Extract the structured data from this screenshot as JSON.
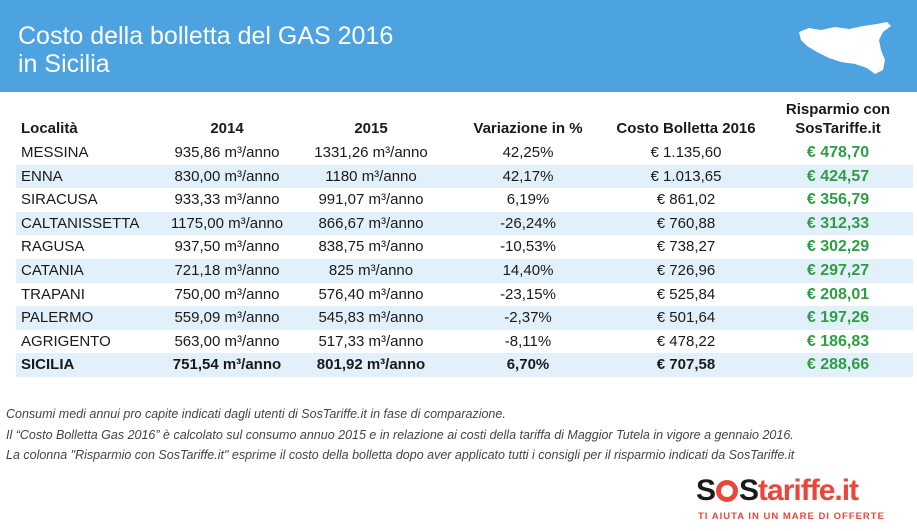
{
  "header": {
    "title": "Costo della bolletta del GAS 2016\nin Sicilia",
    "color": "#4da3e0",
    "icon": "sicily-map-icon"
  },
  "table": {
    "columns": [
      "Località",
      "2014",
      "2015",
      "Variazione in %",
      "Costo Bolletta 2016",
      "Risparmio con\nSosTariffe.it"
    ],
    "rows": [
      {
        "loc": "MESSINA",
        "y2014": "935,86 m³/anno",
        "y2015": "1331,26 m³/anno",
        "var": "42,25%",
        "cost": "€ 1.135,60",
        "sav": "€ 478,70"
      },
      {
        "loc": "ENNA",
        "y2014": "830,00 m³/anno",
        "y2015": "1180 m³/anno",
        "var": "42,17%",
        "cost": "€ 1.013,65",
        "sav": "€ 424,57"
      },
      {
        "loc": "SIRACUSA",
        "y2014": "933,33 m³/anno",
        "y2015": "991,07 m³/anno",
        "var": "6,19%",
        "cost": "€ 861,02",
        "sav": "€ 356,79"
      },
      {
        "loc": "CALTANISSETTA",
        "y2014": "1175,00 m³/anno",
        "y2015": "866,67 m³/anno",
        "var": "-26,24%",
        "cost": "€ 760,88",
        "sav": "€ 312,33"
      },
      {
        "loc": "RAGUSA",
        "y2014": "937,50 m³/anno",
        "y2015": "838,75 m³/anno",
        "var": "-10,53%",
        "cost": "€ 738,27",
        "sav": "€ 302,29"
      },
      {
        "loc": "CATANIA",
        "y2014": "721,18 m³/anno",
        "y2015": "825 m³/anno",
        "var": "14,40%",
        "cost": "€ 726,96",
        "sav": "€ 297,27"
      },
      {
        "loc": "TRAPANI",
        "y2014": "750,00 m³/anno",
        "y2015": "576,40 m³/anno",
        "var": "-23,15%",
        "cost": "€ 525,84",
        "sav": "€ 208,01"
      },
      {
        "loc": "PALERMO",
        "y2014": "559,09 m³/anno",
        "y2015": "545,83 m³/anno",
        "var": "-2,37%",
        "cost": "€ 501,64",
        "sav": "€ 197,26"
      },
      {
        "loc": "AGRIGENTO",
        "y2014": "563,00 m³/anno",
        "y2015": "517,33 m³/anno",
        "var": "-8,11%",
        "cost": "€ 478,22",
        "sav": "€ 186,83"
      },
      {
        "loc": "SICILIA",
        "y2014": "751,54 m³/anno",
        "y2015": "801,92 m³/anno",
        "var": "6,70%",
        "cost": "€ 707,58",
        "sav": "€ 288,66"
      }
    ],
    "stripe_color": "#e2f0fb",
    "savings_color": "#2e9e44"
  },
  "notes": [
    "Consumi medi annui pro capite indicati dagli utenti di SosTariffe.it in fase di comparazione.",
    "Il “Costo Bolletta Gas 2016” è calcolato sul consumo annuo 2015 e in relazione ai costi della tariffa di Maggior Tutela in vigore a gennaio 2016.",
    "La colonna \"Risparmio con SosTariffe.it\" esprime il costo della bolletta dopo aver applicato tutti i consigli per il risparmio indicati da SosTariffe.it"
  ],
  "logo": {
    "text_a": "S",
    "text_b": "S",
    "text_c": "tariffe.it",
    "tagline": "TI AIUTA IN UN MARE DI OFFERTE",
    "accent": "#e8473a"
  }
}
